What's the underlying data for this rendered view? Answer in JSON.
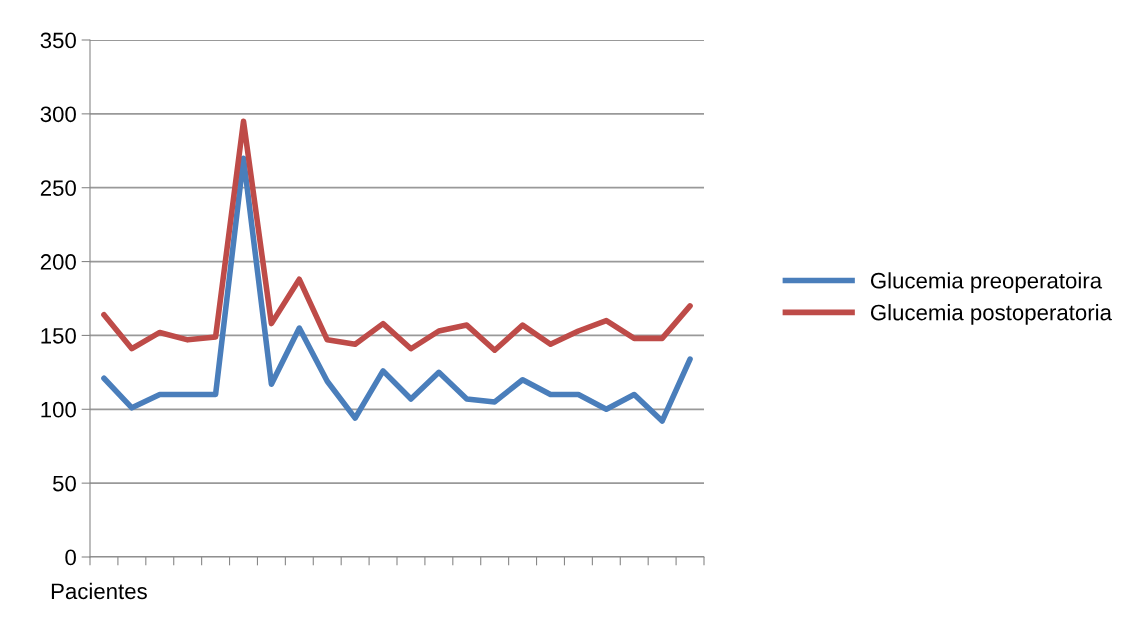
{
  "chart_data": {
    "type": "line",
    "xlabel": "Pacientes",
    "categories": [
      null,
      null,
      null,
      null,
      null,
      null,
      null,
      null,
      null,
      null,
      null,
      null,
      null,
      null,
      null,
      null,
      null,
      null,
      null,
      null,
      null,
      null
    ],
    "series": [
      {
        "name": "Glucemia preoperatoira",
        "color": "#4a7ebb",
        "values": [
          121,
          101,
          110,
          110,
          110,
          270,
          117,
          155,
          119,
          94,
          126,
          107,
          125,
          107,
          105,
          120,
          110,
          110,
          100,
          110,
          92,
          134
        ]
      },
      {
        "name": "Glucemia postoperatoria",
        "color": "#be4b48",
        "values": [
          164,
          141,
          152,
          147,
          149,
          295,
          158,
          188,
          147,
          144,
          158,
          141,
          153,
          157,
          140,
          157,
          144,
          153,
          160,
          148,
          148,
          170
        ]
      }
    ],
    "ylim": [
      0,
      350
    ],
    "yticks": [
      0,
      50,
      100,
      150,
      200,
      250,
      300,
      350
    ],
    "grid": "y",
    "legend": "right",
    "marker": "none",
    "line_style": "solid"
  }
}
